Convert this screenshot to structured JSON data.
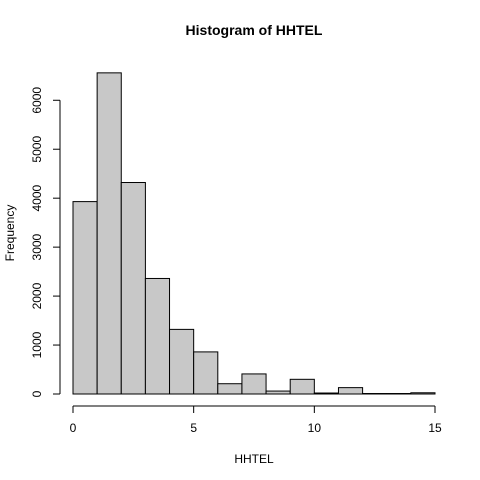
{
  "chart_data": {
    "type": "bar",
    "title": "Histogram of HHTEL",
    "xlabel": "HHTEL",
    "ylabel": "Frequency",
    "bins": [
      {
        "start": 0,
        "end": 1,
        "count": 3930
      },
      {
        "start": 1,
        "end": 2,
        "count": 6560
      },
      {
        "start": 2,
        "end": 3,
        "count": 4320
      },
      {
        "start": 3,
        "end": 4,
        "count": 2360
      },
      {
        "start": 4,
        "end": 5,
        "count": 1320
      },
      {
        "start": 5,
        "end": 6,
        "count": 860
      },
      {
        "start": 6,
        "end": 7,
        "count": 210
      },
      {
        "start": 7,
        "end": 8,
        "count": 410
      },
      {
        "start": 8,
        "end": 9,
        "count": 60
      },
      {
        "start": 9,
        "end": 10,
        "count": 300
      },
      {
        "start": 10,
        "end": 11,
        "count": 20
      },
      {
        "start": 11,
        "end": 12,
        "count": 130
      },
      {
        "start": 12,
        "end": 13,
        "count": 10
      },
      {
        "start": 13,
        "end": 14,
        "count": 10
      },
      {
        "start": 14,
        "end": 15,
        "count": 25
      }
    ],
    "xlim": [
      0,
      15
    ],
    "ylim": [
      0,
      6700
    ],
    "x_ticks": [
      0,
      5,
      10,
      15
    ],
    "y_ticks": [
      0,
      1000,
      2000,
      3000,
      4000,
      5000,
      6000
    ],
    "grid": false,
    "legend": "none"
  }
}
